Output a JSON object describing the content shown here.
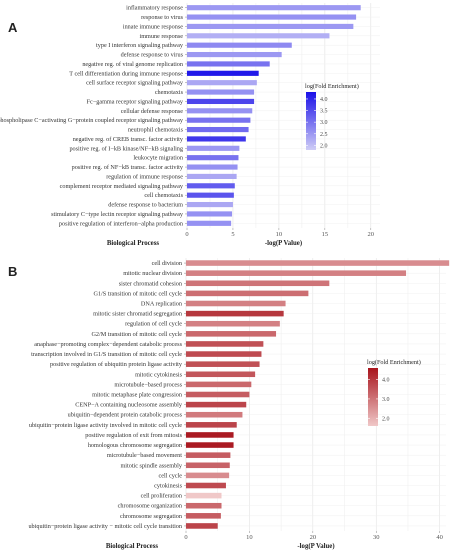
{
  "chart_data": [
    {
      "type": "bar",
      "panel": "A",
      "orientation": "horizontal",
      "xlabel": "-log(P Value)",
      "ylabel": "Biological Process",
      "xlim": [
        0,
        21
      ],
      "xticks": [
        0,
        5,
        10,
        15,
        20
      ],
      "legend": {
        "title": "log(Fold Enrichment)",
        "ticks": [
          2.0,
          2.5,
          3.0,
          3.5,
          4.0
        ],
        "range": [
          1.8,
          4.3
        ],
        "low_color": "#cfcdf6",
        "high_color": "#1a10e8",
        "placement": "right"
      },
      "grid": true,
      "categories": [
        "inflammatory response",
        "response to virus",
        "innate immune response",
        "immune response",
        "type I interferon signaling pathway",
        "defense response to virus",
        "negative reg. of viral genome replication",
        "T cell differentiation during immune response",
        "cell surface receptor signaling pathway",
        "chemotaxis",
        "Fc−gamma receptor signaling pathway",
        "cellular defense response",
        "phospholipase C−activating G−protein coupled receptor signaling pathway",
        "neutrophil chemotaxis",
        "negative reg. of CREB transc. factor activity",
        "positive reg. of I−kB kinase/NF−kB signaling",
        "leukocyte migration",
        "positive reg. of NF−kB transc. factor activity",
        "regulation of immune response",
        "complement receptor mediated signaling pathway",
        "cell chemotaxis",
        "defense response to bacterium",
        "stimulatory C−type lectin receptor signaling pathway",
        "positive regulation of interferon−alpha production"
      ],
      "values": [
        18.9,
        18.4,
        18.1,
        15.5,
        11.4,
        10.3,
        9.0,
        7.8,
        7.6,
        7.3,
        7.3,
        7.1,
        6.9,
        6.7,
        6.4,
        5.7,
        5.6,
        5.5,
        5.4,
        5.2,
        5.1,
        5.0,
        4.9,
        4.8
      ],
      "fold_enrichment": [
        2.5,
        2.6,
        2.5,
        2.2,
        2.7,
        2.5,
        3.0,
        4.2,
        2.3,
        2.6,
        3.6,
        2.6,
        3.0,
        3.1,
        3.8,
        2.5,
        3.0,
        2.6,
        2.3,
        3.3,
        3.4,
        2.3,
        2.6,
        2.6
      ]
    },
    {
      "type": "bar",
      "panel": "B",
      "orientation": "horizontal",
      "xlabel": "-log(P Value)",
      "ylabel": "Biological Process",
      "xlim": [
        0,
        41
      ],
      "xticks": [
        0,
        10,
        20,
        30,
        40
      ],
      "legend": {
        "title": "log(Fold Enrichment)",
        "ticks": [
          2.0,
          3.0,
          4.0
        ],
        "range": [
          1.6,
          4.6
        ],
        "low_color": "#f0c8c8",
        "high_color": "#a8141c",
        "placement": "right"
      },
      "grid": true,
      "categories": [
        "cell division",
        "mitotic nuclear division",
        "sister chromatid cohesion",
        "G1/S transition of mitotic cell cycle",
        "DNA replication",
        "mitotic sister chromatid segregation",
        "regulation of cell cycle",
        "G2/M transition of mitotic cell cycle",
        "anaphase−promoting complex−dependent catabolic process",
        "transcription involved in G1/S transition of mitotic cell cycle",
        "positive regulation of ubiquitin protein ligase activity",
        "mitotic cytokinesis",
        "microtubule−based process",
        "mitotic metaphase plate congression",
        "CENP−A containing nucleosome assembly",
        "ubiquitin−dependent protein catabolic process",
        "ubiquitin−protein ligase activity involved in mitotic cell cycle",
        "positive regulation of exit from mitosis",
        "homologous chromosome segregation",
        "microtubule−based movement",
        "mitotic spindle assembly",
        "cell cycle",
        "cytokinesis",
        "cell proliferation",
        "chromosome organization",
        "chromosome segregation",
        "ubiquitin−protein ligase activity − mitotic cell cycle transition"
      ],
      "values": [
        41.5,
        34.7,
        22.6,
        19.3,
        15.7,
        15.4,
        14.8,
        14.2,
        12.2,
        11.9,
        11.6,
        10.9,
        10.3,
        10.0,
        9.5,
        8.9,
        8.0,
        7.5,
        7.5,
        7.0,
        6.9,
        6.8,
        6.3,
        5.6,
        5.6,
        5.5,
        5.0
      ],
      "fold_enrichment": [
        2.6,
        2.8,
        3.0,
        3.1,
        2.8,
        4.0,
        2.8,
        3.2,
        3.6,
        3.7,
        3.6,
        3.5,
        3.2,
        3.4,
        3.8,
        2.9,
        3.8,
        4.5,
        4.5,
        3.4,
        3.3,
        2.6,
        3.7,
        1.6,
        3.2,
        3.4,
        3.8
      ]
    }
  ]
}
